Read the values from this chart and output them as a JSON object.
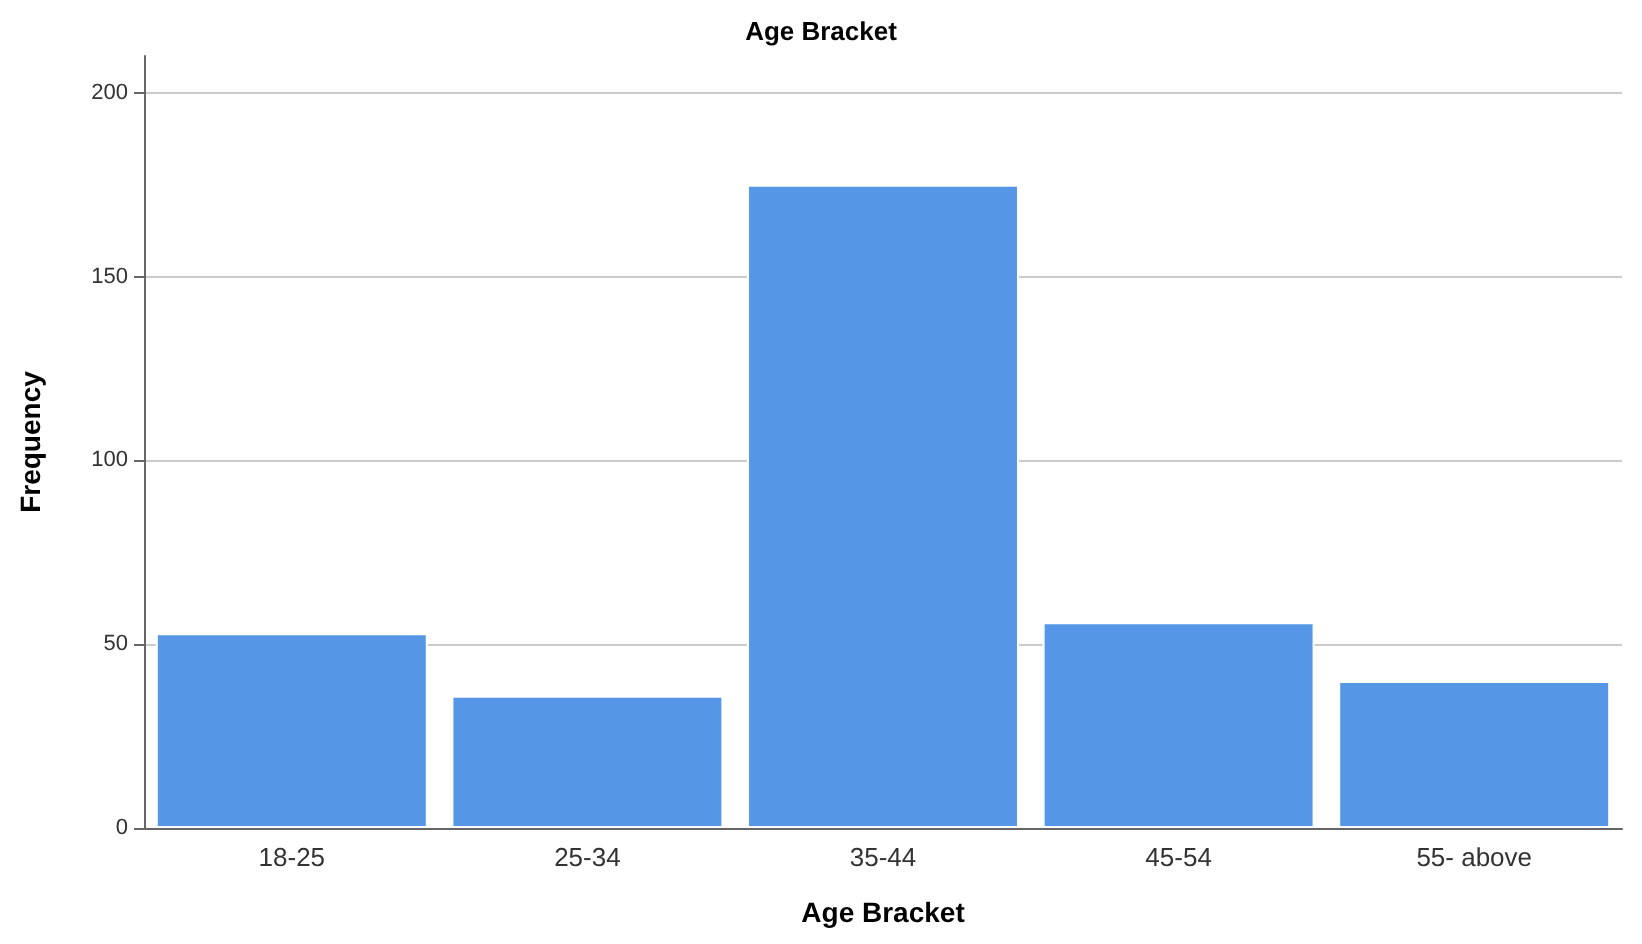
{
  "chart_data": {
    "type": "bar",
    "title": "Age Bracket",
    "xlabel": "Age Bracket",
    "ylabel": "Frequency",
    "categories": [
      "18-25",
      "25-34",
      "35-44",
      "45-54",
      "55- above"
    ],
    "values": [
      53,
      36,
      175,
      56,
      40
    ],
    "color": "#5596e6",
    "ylim": [
      0,
      210
    ],
    "yticks": [
      0,
      50,
      100,
      150,
      200
    ],
    "grid": "y"
  }
}
